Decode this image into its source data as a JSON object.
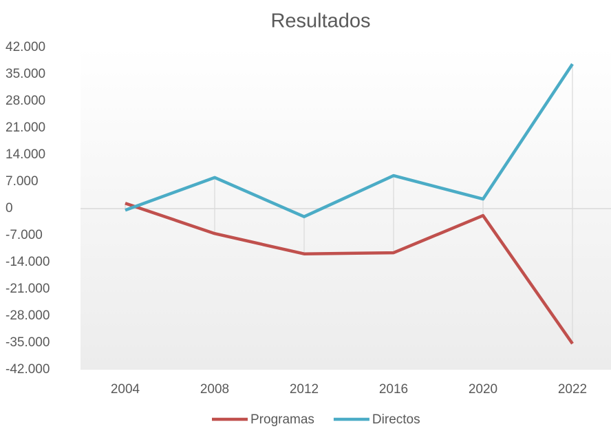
{
  "chart_data": {
    "type": "line",
    "title": "Resultados",
    "categories": [
      "2004",
      "2008",
      "2012",
      "2016",
      "2020",
      "2022"
    ],
    "series": [
      {
        "name": "Programas",
        "color": "#c0504d",
        "values": [
          1400,
          -6500,
          -11800,
          -11500,
          -1800,
          -35200
        ]
      },
      {
        "name": "Directos",
        "color": "#4bacc6",
        "values": [
          -400,
          8100,
          -2100,
          8600,
          2500,
          37700
        ]
      }
    ],
    "ylim": [
      -42000,
      42000
    ],
    "yticks": [
      {
        "value": -42000,
        "label": "-42.000"
      },
      {
        "value": -35000,
        "label": "-35.000"
      },
      {
        "value": -28000,
        "label": "-28.000"
      },
      {
        "value": -21000,
        "label": "-21.000"
      },
      {
        "value": -14000,
        "label": "-14.000"
      },
      {
        "value": -7000,
        "label": "-7.000"
      },
      0,
      {
        "value": 7000,
        "label": "7.000"
      },
      {
        "value": 14000,
        "label": "14.000"
      },
      {
        "value": 21000,
        "label": "21.000"
      },
      {
        "value": 28000,
        "label": "28.000"
      },
      {
        "value": 35000,
        "label": "35.000"
      },
      {
        "value": 42000,
        "label": "42.000"
      }
    ],
    "legend": "bottom"
  }
}
